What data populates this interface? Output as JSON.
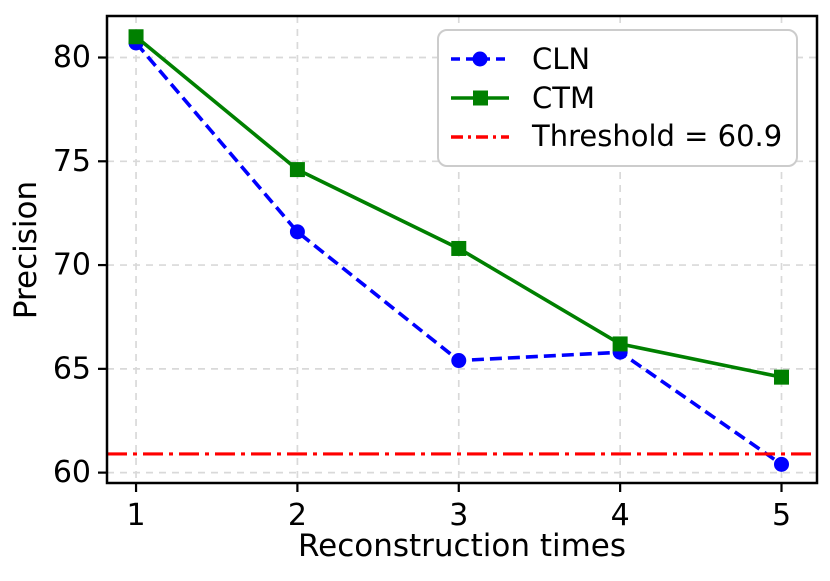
{
  "chart_data": {
    "type": "line",
    "title": "",
    "xlabel": "Reconstruction times",
    "ylabel": "Precision",
    "x": [
      1,
      2,
      3,
      4,
      5
    ],
    "series": [
      {
        "name": "CLN",
        "values": [
          80.7,
          71.6,
          65.4,
          65.8,
          60.4
        ],
        "color": "#0000ff",
        "line_style": "dashed",
        "marker": "circle"
      },
      {
        "name": "CTM",
        "values": [
          81.0,
          74.6,
          70.8,
          66.2,
          64.6
        ],
        "color": "#008000",
        "line_style": "solid",
        "marker": "square"
      }
    ],
    "threshold": {
      "label": "Threshold = 60.9",
      "value": 60.9,
      "color": "#ff0000",
      "line_style": "dashdot"
    },
    "xticks": [
      1,
      2,
      3,
      4,
      5
    ],
    "yticks": [
      60,
      65,
      70,
      75,
      80
    ],
    "xlim": [
      0.82,
      5.22
    ],
    "ylim": [
      59.5,
      82.0
    ],
    "grid": true,
    "legend_position": "upper right",
    "colors": {
      "grid": "#d9d9d9",
      "frame": "#000000",
      "text": "#000000",
      "background": "#ffffff"
    }
  }
}
